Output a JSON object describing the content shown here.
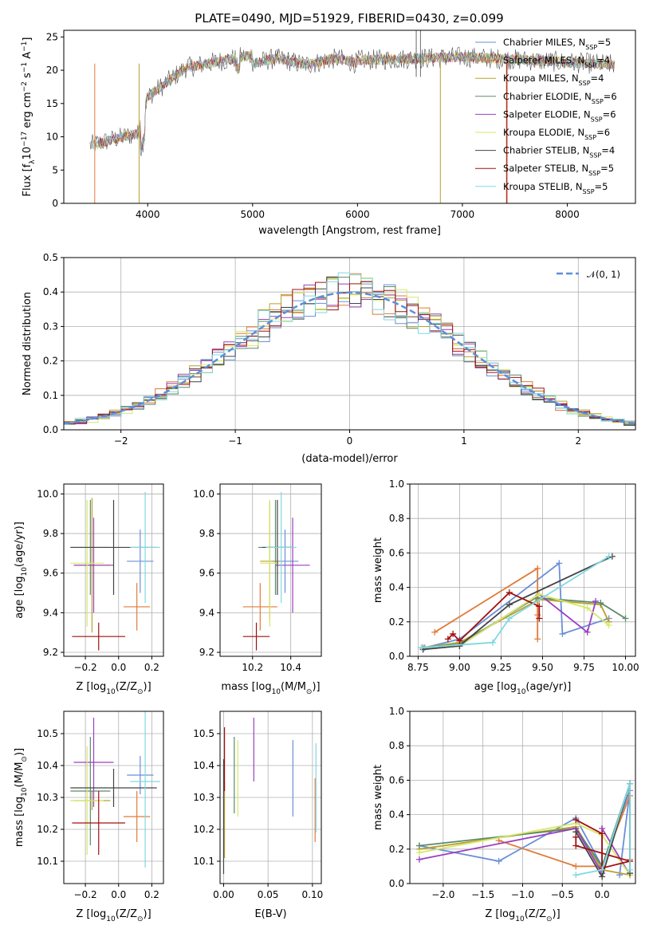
{
  "figure_title": "PLATE=0490, MJD=51929, FIBERID=0430, z=0.099",
  "colors": {
    "Chabrier MILES": "#6a8fd8",
    "Salpeter MILES": "#e07b39",
    "Kroupa MILES": "#b8a030",
    "Chabrier ELODIE": "#5b8a6a",
    "Salpeter ELODIE": "#9b3fbf",
    "Kroupa ELODIE": "#d6e86a",
    "Chabrier STELIB": "#444444",
    "Salpeter STELIB": "#a01010",
    "Kroupa STELIB": "#80d8e0",
    "gaussian": "#5b8fdc"
  },
  "chart_data": [
    {
      "id": "spectrum",
      "type": "line",
      "title": "PLATE=0490, MJD=51929, FIBERID=0430, z=0.099",
      "xlabel": "wavelength [Angstrom, rest frame]",
      "ylabel": "Flux [f_λ 10^-17 erg cm^-2 s^-1 A^-1]",
      "xlim": [
        3200,
        8650
      ],
      "ylim": [
        0,
        26
      ],
      "xticks": [
        4000,
        5000,
        6000,
        7000,
        8000
      ],
      "yticks": [
        0,
        5,
        10,
        15,
        20,
        25
      ],
      "grid": false,
      "legend": "top-right",
      "data_range_x": [
        3450,
        8450
      ],
      "legend_entries": [
        {
          "label": "Chabrier MILES, N",
          "sub": "SSP",
          "suffix": "=5",
          "color_key": "Chabrier MILES"
        },
        {
          "label": "Salpeter MILES, N",
          "sub": "SSP",
          "suffix": "=4",
          "color_key": "Salpeter MILES"
        },
        {
          "label": "Kroupa MILES, N",
          "sub": "SSP",
          "suffix": "=4",
          "color_key": "Kroupa MILES"
        },
        {
          "label": "Chabrier ELODIE, N",
          "sub": "SSP",
          "suffix": "=6",
          "color_key": "Chabrier ELODIE"
        },
        {
          "label": "Salpeter ELODIE, N",
          "sub": "SSP",
          "suffix": "=6",
          "color_key": "Salpeter ELODIE"
        },
        {
          "label": "Kroupa ELODIE, N",
          "sub": "SSP",
          "suffix": "=6",
          "color_key": "Kroupa ELODIE"
        },
        {
          "label": "Chabrier STELIB, N",
          "sub": "SSP",
          "suffix": "=4",
          "color_key": "Chabrier STELIB"
        },
        {
          "label": "Salpeter STELIB, N",
          "sub": "SSP",
          "suffix": "=5",
          "color_key": "Salpeter STELIB"
        },
        {
          "label": "Kroupa STELIB, N",
          "sub": "SSP",
          "suffix": "=5",
          "color_key": "Kroupa STELIB"
        }
      ]
    },
    {
      "id": "residuals",
      "type": "line",
      "xlabel": "(data-model)/error",
      "ylabel": "Normed distribution",
      "xlim": [
        -2.5,
        2.5
      ],
      "ylim": [
        0,
        0.5
      ],
      "xticks": [
        -2,
        -1,
        0,
        1,
        2
      ],
      "xticklabels": [
        "−2",
        "−1",
        "0",
        "1",
        "2"
      ],
      "yticks": [
        0.0,
        0.1,
        0.2,
        0.3,
        0.4,
        0.5
      ],
      "yticklabels": [
        "0.0",
        "0.1",
        "0.2",
        "0.3",
        "0.4",
        "0.5"
      ],
      "grid": true,
      "legend": "top-right",
      "gaussian_label": "𝒩(0, 1)",
      "bins": 50
    },
    {
      "id": "age_vs_Z",
      "type": "scatter",
      "xlabel": "Z [log10(Z/Z⊙)]",
      "ylabel": "age  [log10(age/yr)]",
      "xlim": [
        -0.33,
        0.27
      ],
      "ylim": [
        9.18,
        10.05
      ],
      "xticks": [
        -0.2,
        0.0,
        0.2
      ],
      "xticklabels": [
        "−0.2",
        "0.0",
        "0.2"
      ],
      "yticks": [
        9.2,
        9.4,
        9.6,
        9.8,
        10.0
      ],
      "yticklabels": [
        "9.2",
        "9.4",
        "9.6",
        "9.8",
        "10.0"
      ],
      "grid": true,
      "points": [
        {
          "model": "Chabrier MILES",
          "x": 0.13,
          "y": 9.66,
          "xerr": 0.08,
          "yerr": 0.16
        },
        {
          "model": "Salpeter MILES",
          "x": 0.11,
          "y": 9.43,
          "xerr": 0.08,
          "yerr": 0.12
        },
        {
          "model": "Kroupa MILES",
          "x": -0.16,
          "y": 9.64,
          "xerr": 0.11,
          "yerr": 0.34
        },
        {
          "model": "Chabrier ELODIE",
          "x": -0.17,
          "y": 9.73,
          "xerr": 0.12,
          "yerr": 0.24
        },
        {
          "model": "Salpeter ELODIE",
          "x": -0.15,
          "y": 9.64,
          "xerr": 0.12,
          "yerr": 0.24
        },
        {
          "model": "Kroupa ELODIE",
          "x": -0.19,
          "y": 9.65,
          "xerr": 0.1,
          "yerr": 0.32
        },
        {
          "model": "Chabrier STELIB",
          "x": -0.03,
          "y": 9.73,
          "xerr": 0.26,
          "yerr": 0.24
        },
        {
          "model": "Salpeter STELIB",
          "x": -0.12,
          "y": 9.28,
          "xerr": 0.16,
          "yerr": 0.07
        },
        {
          "model": "Kroupa STELIB",
          "x": 0.16,
          "y": 9.73,
          "xerr": 0.09,
          "yerr": 0.28
        }
      ]
    },
    {
      "id": "age_vs_mass",
      "type": "scatter",
      "xlabel": "mass [log10(M/M⊙)]",
      "xlim": [
        10.03,
        10.56
      ],
      "ylim": [
        9.18,
        10.05
      ],
      "xticks": [
        10.2,
        10.4
      ],
      "xticklabels": [
        "10.2",
        "10.4"
      ],
      "yticks": [
        9.2,
        9.4,
        9.6,
        9.8,
        10.0
      ],
      "yticklabels": [
        "9.2",
        "9.4",
        "9.6",
        "9.8",
        "10.0"
      ],
      "grid": true,
      "points": [
        {
          "model": "Chabrier MILES",
          "x": 10.37,
          "y": 9.66,
          "xerr": 0.07,
          "yerr": 0.16
        },
        {
          "model": "Salpeter MILES",
          "x": 10.24,
          "y": 9.43,
          "xerr": 0.09,
          "yerr": 0.12
        },
        {
          "model": "Kroupa MILES",
          "x": 10.29,
          "y": 9.66,
          "xerr": 0.05,
          "yerr": 0.3
        },
        {
          "model": "Chabrier ELODIE",
          "x": 10.32,
          "y": 9.73,
          "xerr": 0.09,
          "yerr": 0.24
        },
        {
          "model": "Salpeter ELODIE",
          "x": 10.41,
          "y": 9.64,
          "xerr": 0.09,
          "yerr": 0.24
        },
        {
          "model": "Kroupa ELODIE",
          "x": 10.29,
          "y": 9.65,
          "xerr": 0.05,
          "yerr": 0.32
        },
        {
          "model": "Chabrier STELIB",
          "x": 10.33,
          "y": 9.73,
          "xerr": 0.08,
          "yerr": 0.24
        },
        {
          "model": "Salpeter STELIB",
          "x": 10.22,
          "y": 9.28,
          "xerr": 0.07,
          "yerr": 0.07
        },
        {
          "model": "Kroupa STELIB",
          "x": 10.35,
          "y": 9.73,
          "xerr": 0.08,
          "yerr": 0.28
        }
      ]
    },
    {
      "id": "weight_vs_age",
      "type": "line",
      "xlabel": "age  [log10(age/yr)]",
      "ylabel": "mass weight",
      "xlim": [
        8.7,
        10.06
      ],
      "ylim": [
        0,
        1.0
      ],
      "xticks": [
        8.75,
        9.0,
        9.25,
        9.5,
        9.75,
        10.0
      ],
      "xticklabels": [
        "8.75",
        "9.00",
        "9.25",
        "9.50",
        "9.75",
        "10.00"
      ],
      "yticks": [
        0.0,
        0.2,
        0.4,
        0.6,
        0.8,
        1.0
      ],
      "yticklabels": [
        "0.0",
        "0.2",
        "0.4",
        "0.6",
        "0.8",
        "1.0"
      ],
      "grid": true,
      "series": [
        {
          "model": "Chabrier MILES",
          "x": [
            8.79,
            9.0,
            9.6,
            9.62,
            9.9
          ],
          "y": [
            0.05,
            0.1,
            0.54,
            0.13,
            0.22
          ]
        },
        {
          "model": "Salpeter MILES",
          "x": [
            8.85,
            9.47,
            9.47,
            9.47
          ],
          "y": [
            0.14,
            0.51,
            0.1,
            0.24
          ]
        },
        {
          "model": "Kroupa MILES",
          "x": [
            8.78,
            9.0,
            9.48,
            9.85,
            9.9
          ],
          "y": [
            0.05,
            0.08,
            0.33,
            0.3,
            0.2
          ]
        },
        {
          "model": "Chabrier ELODIE",
          "x": [
            8.77,
            9.0,
            9.46,
            9.85,
            10.0
          ],
          "y": [
            0.05,
            0.07,
            0.34,
            0.31,
            0.22
          ]
        },
        {
          "model": "Salpeter ELODIE",
          "x": [
            8.78,
            9.0,
            9.48,
            9.77,
            9.82
          ],
          "y": [
            0.04,
            0.06,
            0.36,
            0.14,
            0.32
          ]
        },
        {
          "model": "Kroupa ELODIE",
          "x": [
            8.78,
            9.0,
            9.48,
            9.77,
            9.9
          ],
          "y": [
            0.04,
            0.06,
            0.36,
            0.28,
            0.18
          ]
        },
        {
          "model": "Chabrier STELIB",
          "x": [
            8.78,
            9.0,
            9.3,
            9.92
          ],
          "y": [
            0.04,
            0.06,
            0.3,
            0.58
          ]
        },
        {
          "model": "Salpeter STELIB",
          "x": [
            8.93,
            8.96,
            9.0,
            9.3,
            9.48,
            9.48
          ],
          "y": [
            0.1,
            0.13,
            0.09,
            0.37,
            0.29,
            0.22
          ]
        },
        {
          "model": "Kroupa STELIB",
          "x": [
            8.77,
            9.2,
            9.3,
            9.9
          ],
          "y": [
            0.05,
            0.08,
            0.22,
            0.58
          ]
        }
      ]
    },
    {
      "id": "mass_vs_Z",
      "type": "scatter",
      "xlabel": "Z [log10(Z/Z⊙)]",
      "ylabel": "mass [log10(M/M⊙)]",
      "xlim": [
        -0.33,
        0.27
      ],
      "ylim": [
        10.03,
        10.57
      ],
      "xticks": [
        -0.2,
        0.0,
        0.2
      ],
      "xticklabels": [
        "−0.2",
        "0.0",
        "0.2"
      ],
      "yticks": [
        10.1,
        10.2,
        10.3,
        10.4,
        10.5
      ],
      "yticklabels": [
        "10.1",
        "10.2",
        "10.3",
        "10.4",
        "10.5"
      ],
      "grid": true,
      "points": [
        {
          "model": "Chabrier MILES",
          "x": 0.13,
          "y": 10.37,
          "xerr": 0.08,
          "yerr": 0.06
        },
        {
          "model": "Salpeter MILES",
          "x": 0.11,
          "y": 10.24,
          "xerr": 0.08,
          "yerr": 0.08
        },
        {
          "model": "Kroupa MILES",
          "x": -0.16,
          "y": 10.29,
          "xerr": 0.11,
          "yerr": 0.03
        },
        {
          "model": "Chabrier ELODIE",
          "x": -0.17,
          "y": 10.32,
          "xerr": 0.12,
          "yerr": 0.17
        },
        {
          "model": "Salpeter ELODIE",
          "x": -0.15,
          "y": 10.41,
          "xerr": 0.12,
          "yerr": 0.14
        },
        {
          "model": "Kroupa ELODIE",
          "x": -0.19,
          "y": 10.29,
          "xerr": 0.1,
          "yerr": 0.17
        },
        {
          "model": "Chabrier STELIB",
          "x": -0.03,
          "y": 10.33,
          "xerr": 0.26,
          "yerr": 0.06
        },
        {
          "model": "Salpeter STELIB",
          "x": -0.12,
          "y": 10.22,
          "xerr": 0.16,
          "yerr": 0.1
        },
        {
          "model": "Kroupa STELIB",
          "x": 0.16,
          "y": 10.35,
          "xerr": 0.09,
          "yerr": 0.27
        }
      ]
    },
    {
      "id": "mass_vs_ebv",
      "type": "scatter",
      "xlabel": "E(B-V)",
      "xlim": [
        -0.004,
        0.11
      ],
      "ylim": [
        10.03,
        10.57
      ],
      "xticks": [
        0.0,
        0.05,
        0.1
      ],
      "xticklabels": [
        "0.00",
        "0.05",
        "0.10"
      ],
      "yticks": [
        10.1,
        10.2,
        10.3,
        10.4,
        10.5
      ],
      "yticklabels": [
        "10.1",
        "10.2",
        "10.3",
        "10.4",
        "10.5"
      ],
      "grid": true,
      "points": [
        {
          "model": "Chabrier MILES",
          "x": 0.078,
          "y": 10.36,
          "xerr": 0.0,
          "yerr": 0.12
        },
        {
          "model": "Salpeter MILES",
          "x": 0.103,
          "y": 10.26,
          "xerr": 0.0,
          "yerr": 0.1
        },
        {
          "model": "Kroupa MILES",
          "x": 0.001,
          "y": 10.23,
          "xerr": 0.0,
          "yerr": 0.12
        },
        {
          "model": "Chabrier ELODIE",
          "x": 0.012,
          "y": 10.37,
          "xerr": 0.0,
          "yerr": 0.12
        },
        {
          "model": "Salpeter ELODIE",
          "x": 0.034,
          "y": 10.45,
          "xerr": 0.0,
          "yerr": 0.1
        },
        {
          "model": "Kroupa ELODIE",
          "x": 0.016,
          "y": 10.36,
          "xerr": 0.0,
          "yerr": 0.12
        },
        {
          "model": "Chabrier STELIB",
          "x": 0.0,
          "y": 10.24,
          "xerr": 0.0,
          "yerr": 0.18
        },
        {
          "model": "Salpeter STELIB",
          "x": 0.001,
          "y": 10.42,
          "xerr": 0.0,
          "yerr": 0.1
        },
        {
          "model": "Kroupa STELIB",
          "x": 0.104,
          "y": 10.33,
          "xerr": 0.0,
          "yerr": 0.14
        }
      ]
    },
    {
      "id": "weight_vs_Z",
      "type": "line",
      "xlabel": "Z [log10(Z/Z⊙)]",
      "ylabel": "mass weight",
      "xlim": [
        -2.42,
        0.42
      ],
      "ylim": [
        0,
        1.0
      ],
      "xticks": [
        -2.0,
        -1.5,
        -1.0,
        -0.5,
        0.0
      ],
      "xticklabels": [
        "−2.0",
        "−1.5",
        "−1.0",
        "−0.5",
        "0.0"
      ],
      "yticks": [
        0.0,
        0.2,
        0.4,
        0.6,
        0.8,
        1.0
      ],
      "yticklabels": [
        "0.0",
        "0.2",
        "0.4",
        "0.6",
        "0.8",
        "1.0"
      ],
      "grid": true,
      "series": [
        {
          "model": "Chabrier MILES",
          "x": [
            -2.3,
            -1.3,
            -0.33,
            0.0,
            0.35,
            0.22
          ],
          "y": [
            0.22,
            0.13,
            0.38,
            0.1,
            0.54,
            0.05
          ]
        },
        {
          "model": "Salpeter MILES",
          "x": [
            -1.3,
            -0.33,
            0.0,
            0.35,
            0.35
          ],
          "y": [
            0.25,
            0.1,
            0.1,
            0.51,
            0.14
          ]
        },
        {
          "model": "Kroupa MILES",
          "x": [
            -2.3,
            -0.33,
            0.0,
            0.35
          ],
          "y": [
            0.2,
            0.33,
            0.08,
            0.05
          ]
        },
        {
          "model": "Chabrier ELODIE",
          "x": [
            -2.3,
            -0.33,
            0.0,
            0.35,
            0.35
          ],
          "y": [
            0.22,
            0.32,
            0.1,
            0.58,
            0.05
          ]
        },
        {
          "model": "Salpeter ELODIE",
          "x": [
            -2.3,
            -0.33,
            0.0,
            0.0,
            0.35
          ],
          "y": [
            0.14,
            0.32,
            0.06,
            0.32,
            0.05
          ]
        },
        {
          "model": "Kroupa ELODIE",
          "x": [
            -2.3,
            -0.33,
            0.0,
            0.35
          ],
          "y": [
            0.18,
            0.35,
            0.28,
            0.05
          ]
        },
        {
          "model": "Chabrier STELIB",
          "x": [
            -0.33,
            0.0,
            0.35,
            0.35
          ],
          "y": [
            0.3,
            0.04,
            0.58,
            0.06
          ]
        },
        {
          "model": "Salpeter STELIB",
          "x": [
            -0.33,
            0.0,
            0.0,
            0.35,
            -0.33,
            -0.33
          ],
          "y": [
            0.37,
            0.29,
            0.09,
            0.13,
            0.22,
            0.27
          ]
        },
        {
          "model": "Kroupa STELIB",
          "x": [
            -0.33,
            0.0,
            0.35,
            0.35
          ],
          "y": [
            0.05,
            0.08,
            0.58,
            0.08
          ]
        }
      ]
    }
  ]
}
